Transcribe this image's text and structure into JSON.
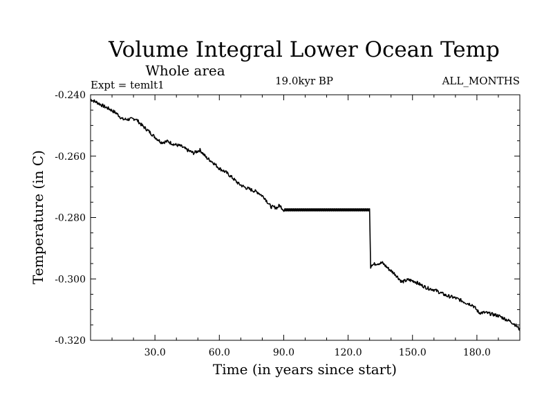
{
  "chart_data": {
    "type": "line",
    "title": "Volume Integral Lower Ocean Temp",
    "subtitle": "Whole area",
    "experiment_label": "Expt = temlt1",
    "period_label": "19.0kyr BP",
    "months_label": "ALL_MONTHS",
    "xlabel": "Time (in years since start)",
    "ylabel": "Temperature (in C)",
    "xlim": [
      0,
      200
    ],
    "ylim": [
      -0.32,
      -0.24
    ],
    "x_ticks": [
      30,
      60,
      90,
      120,
      150,
      180
    ],
    "x_tick_labels": [
      "30.0",
      "60.0",
      "90.0",
      "120.0",
      "150.0",
      "180.0"
    ],
    "y_ticks": [
      -0.24,
      -0.26,
      -0.28,
      -0.3,
      -0.32
    ],
    "y_tick_labels": [
      "-0.240",
      "-0.260",
      "-0.280",
      "-0.300",
      "-0.320"
    ],
    "grid": false,
    "series": [
      {
        "name": "temlt1",
        "x": [
          0,
          3,
          6,
          9,
          12,
          15,
          18,
          21,
          24,
          27,
          30,
          33,
          36,
          39,
          42,
          45,
          48,
          51,
          54,
          57,
          60,
          63,
          66,
          69,
          72,
          75,
          78,
          81,
          84,
          87,
          88,
          90,
          95,
          100,
          105,
          110,
          115,
          120,
          125,
          130,
          130.5,
          131,
          133,
          136,
          139,
          142,
          145,
          148,
          151,
          154,
          157,
          160,
          163,
          166,
          169,
          172,
          175,
          178,
          181,
          184,
          187,
          190,
          193,
          196,
          198,
          200
        ],
        "y": [
          -0.2415,
          -0.2425,
          -0.2437,
          -0.2447,
          -0.246,
          -0.248,
          -0.248,
          -0.2478,
          -0.25,
          -0.2518,
          -0.2538,
          -0.2555,
          -0.2552,
          -0.2562,
          -0.2567,
          -0.258,
          -0.259,
          -0.258,
          -0.2605,
          -0.262,
          -0.264,
          -0.2652,
          -0.267,
          -0.269,
          -0.2702,
          -0.271,
          -0.2718,
          -0.2735,
          -0.2765,
          -0.2768,
          -0.276,
          -0.2775,
          -0.2775,
          -0.2775,
          -0.2775,
          -0.2775,
          -0.2775,
          -0.2775,
          -0.2775,
          -0.2775,
          -0.2965,
          -0.2955,
          -0.295,
          -0.2948,
          -0.2968,
          -0.2985,
          -0.301,
          -0.3003,
          -0.3008,
          -0.302,
          -0.303,
          -0.3035,
          -0.3045,
          -0.3055,
          -0.306,
          -0.3068,
          -0.3078,
          -0.3085,
          -0.311,
          -0.311,
          -0.3115,
          -0.312,
          -0.313,
          -0.314,
          -0.315,
          -0.3165
        ]
      }
    ]
  }
}
